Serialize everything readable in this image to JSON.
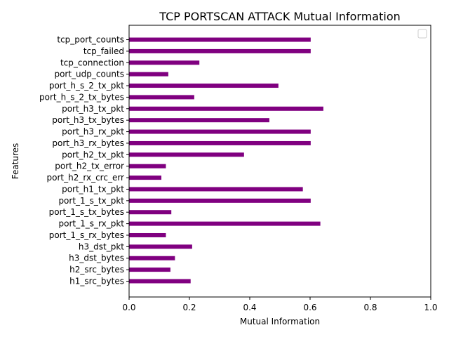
{
  "chart_data": {
    "type": "bar",
    "orientation": "horizontal",
    "title": "TCP PORTSCAN ATTACK Mutual Information",
    "xlabel": "Mutual Information",
    "ylabel": "Features",
    "xlim": [
      0,
      1.0
    ],
    "xticks": [
      "0.0",
      "0.2",
      "0.4",
      "0.6",
      "0.8",
      "1.0"
    ],
    "xtick_values": [
      0,
      0.2,
      0.4,
      0.6,
      0.8,
      1.0
    ],
    "bar_color": "#800080",
    "legend": "top-right, empty",
    "grid": false,
    "categories": [
      "h1_src_bytes",
      "h2_src_bytes",
      "h3_dst_bytes",
      "h3_dst_pkt",
      "port_1_s_rx_bytes",
      "port_1_s_rx_pkt",
      "port_1_s_tx_bytes",
      "port_1_s_tx_pkt",
      "port_h1_tx_pkt",
      "port_h2_rx_crc_err",
      "port_h2_tx_error",
      "port_h2_tx_pkt",
      "port_h3_rx_bytes",
      "port_h3_rx_pkt",
      "port_h3_tx_bytes",
      "port_h3_tx_pkt",
      "port_h_s_2_tx_bytes",
      "port_h_s_2_tx_pkt",
      "port_udp_counts",
      "tcp_connection",
      "tcp_failed",
      "tcp_port_counts"
    ],
    "values": [
      0.204,
      0.137,
      0.152,
      0.209,
      0.122,
      0.634,
      0.14,
      0.602,
      0.576,
      0.107,
      0.122,
      0.381,
      0.602,
      0.602,
      0.465,
      0.644,
      0.216,
      0.495,
      0.13,
      0.233,
      0.602,
      0.602
    ]
  }
}
